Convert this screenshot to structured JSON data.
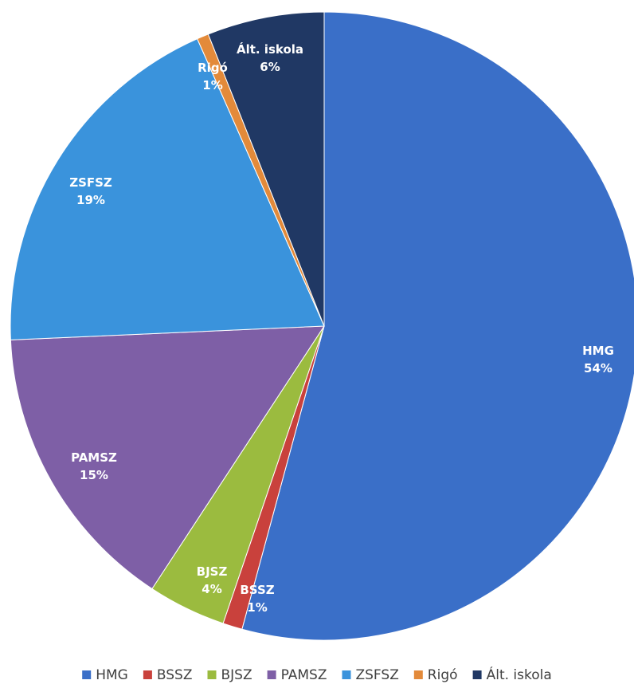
{
  "chart_data": {
    "type": "pie",
    "title": "",
    "start_angle_deg": 0,
    "direction": "clockwise",
    "legend_position": "bottom",
    "slices": [
      {
        "name": "HMG",
        "value": 54,
        "label": "54%",
        "color": "#3A6FC8",
        "text_color": "#ffffff"
      },
      {
        "name": "BSSZ",
        "value": 1,
        "label": "1%",
        "color": "#C9413C",
        "text_color": "#ffffff"
      },
      {
        "name": "BJSZ",
        "value": 4,
        "label": "4%",
        "color": "#9BBB3F",
        "text_color": "#ffffff"
      },
      {
        "name": "PAMSZ",
        "value": 15,
        "label": "15%",
        "color": "#7E5FA6",
        "text_color": "#ffffff"
      },
      {
        "name": "ZSFSZ",
        "value": 19,
        "label": "19%",
        "color": "#3A93DC",
        "text_color": "#ffffff"
      },
      {
        "name": "Rigó",
        "value": 0.6,
        "label": "1%",
        "color": "#E38A3A",
        "text_color": "#ffffff"
      },
      {
        "name": "Ált. iskola",
        "value": 6,
        "label": "6%",
        "color": "#203864",
        "text_color": "#ffffff"
      }
    ]
  }
}
